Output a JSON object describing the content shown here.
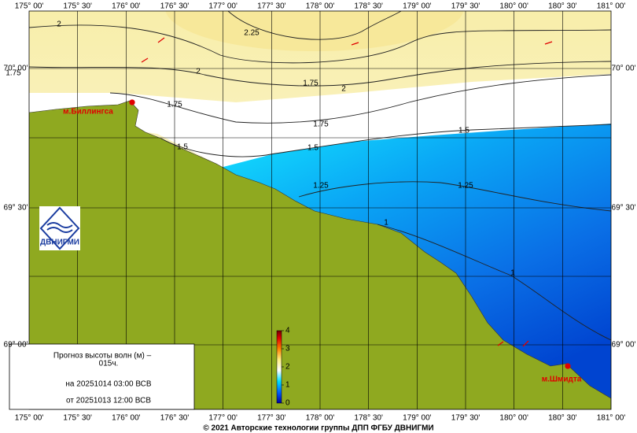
{
  "map": {
    "lon_labels": [
      "175° 00'",
      "175° 30'",
      "176° 00'",
      "176° 30'",
      "177° 00'",
      "177° 30'",
      "178° 00'",
      "178° 30'",
      "179° 00'",
      "179° 30'",
      "180° 00'",
      "180° 30'",
      "181° 00'"
    ],
    "lat_labels": [
      "70° 00'",
      "69° 30'",
      "69° 00'"
    ],
    "contour_labels": [
      "2",
      "2.25",
      "1.75",
      "2",
      "2",
      "1.75",
      "1.75",
      "1.75",
      "1.5",
      "1.5",
      "1.5",
      "1.25",
      "1.25",
      "1",
      "1"
    ],
    "places": [
      "м.Биллингса",
      "м.Шмидта"
    ],
    "logo_text": "ДВНИГМИ",
    "legend": {
      "title": "Прогноз высоты волн (м) –",
      "lead": "015ч.",
      "valid": "на 20251014 03:00 ВСВ",
      "issued": "от 20251013 12:00 ВСВ"
    },
    "colorbar": {
      "ticks": [
        0,
        1,
        2,
        3,
        4
      ],
      "lim": [
        0,
        4
      ]
    },
    "footer": "© 2021 Авторские технологии группы ДПП ФГБУ ДВНИГМИ"
  }
}
